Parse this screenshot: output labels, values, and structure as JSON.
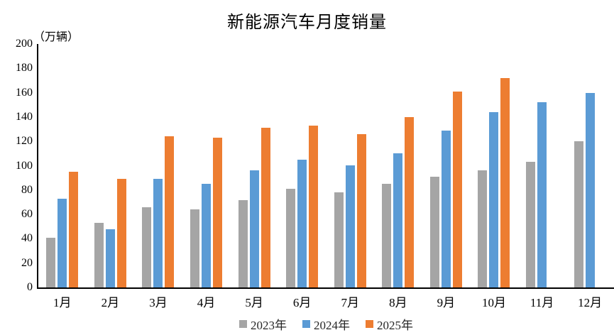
{
  "title": "新能源汽车月度销量",
  "unit_label": "（万辆）",
  "chart_data": {
    "type": "bar",
    "title": "新能源汽车月度销量",
    "ylabel": "（万辆）",
    "categories": [
      "1月",
      "2月",
      "3月",
      "4月",
      "5月",
      "6月",
      "7月",
      "8月",
      "9月",
      "10月",
      "11月",
      "12月"
    ],
    "series": [
      {
        "name": "2023年",
        "color": "#A5A5A5",
        "values": [
          41,
          53,
          66,
          64,
          72,
          81,
          78,
          85,
          91,
          96,
          103,
          120
        ]
      },
      {
        "name": "2024年",
        "color": "#5B9BD5",
        "values": [
          73,
          48,
          89,
          85,
          96,
          105,
          100,
          110,
          129,
          144,
          152,
          160
        ]
      },
      {
        "name": "2025年",
        "color": "#ED7D31",
        "values": [
          95,
          89,
          124,
          123,
          131,
          133,
          126,
          140,
          161,
          172,
          null,
          null
        ]
      }
    ],
    "ylim": [
      0,
      200
    ],
    "ytick_step": 20,
    "yticks": [
      0,
      20,
      40,
      60,
      80,
      100,
      120,
      140,
      160,
      180,
      200
    ],
    "grid": false,
    "legend_position": "bottom",
    "axis_color": "#000000",
    "background_color": "#FFFFFF"
  }
}
